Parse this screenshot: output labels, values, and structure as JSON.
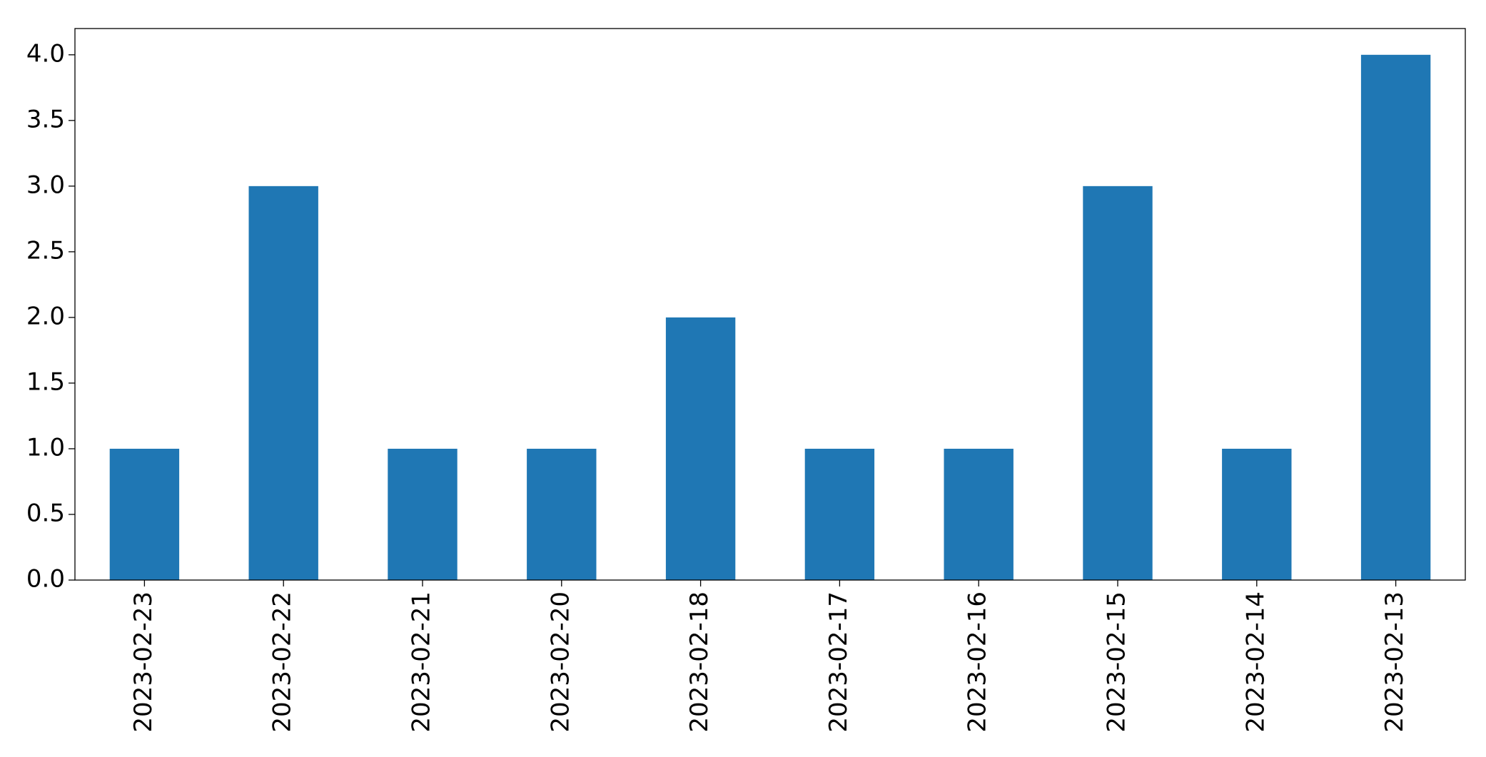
{
  "chart_data": {
    "type": "bar",
    "categories": [
      "2023-02-23",
      "2023-02-22",
      "2023-02-21",
      "2023-02-20",
      "2023-02-18",
      "2023-02-17",
      "2023-02-16",
      "2023-02-15",
      "2023-02-14",
      "2023-02-13"
    ],
    "values": [
      1,
      3,
      1,
      1,
      2,
      1,
      1,
      3,
      1,
      4
    ],
    "color": "#1f77b4",
    "ylim": [
      0,
      4.2
    ],
    "yticks": [
      {
        "value": 0,
        "label": "0.0"
      },
      {
        "value": 0.5,
        "label": "0.5"
      },
      {
        "value": 1,
        "label": "1.0"
      },
      {
        "value": 1.5,
        "label": "1.5"
      },
      {
        "value": 2,
        "label": "2.0"
      },
      {
        "value": 2.5,
        "label": "2.5"
      },
      {
        "value": 3,
        "label": "3.0"
      },
      {
        "value": 3.5,
        "label": "3.5"
      },
      {
        "value": 4,
        "label": "4.0"
      }
    ],
    "grid": false
  }
}
